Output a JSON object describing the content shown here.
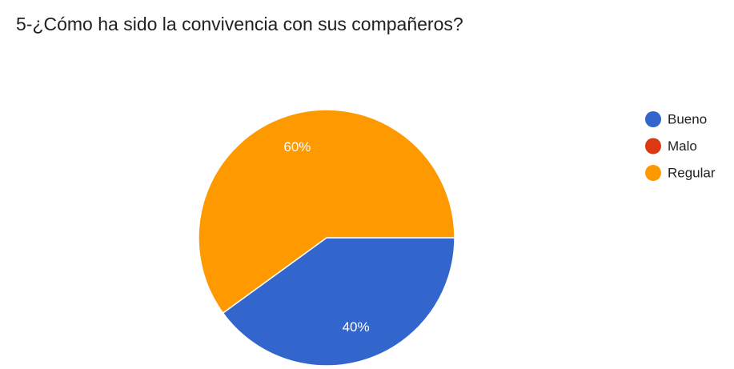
{
  "chart_data": {
    "type": "pie",
    "title": "5-¿Cómo ha sido la convivencia con sus compañeros?",
    "categories": [
      "Bueno",
      "Malo",
      "Regular"
    ],
    "values": [
      40,
      0,
      60
    ],
    "value_labels": [
      "40%",
      null,
      "60%"
    ],
    "colors": [
      "#3366cc",
      "#dc3912",
      "#ff9900"
    ],
    "legend": "right"
  }
}
